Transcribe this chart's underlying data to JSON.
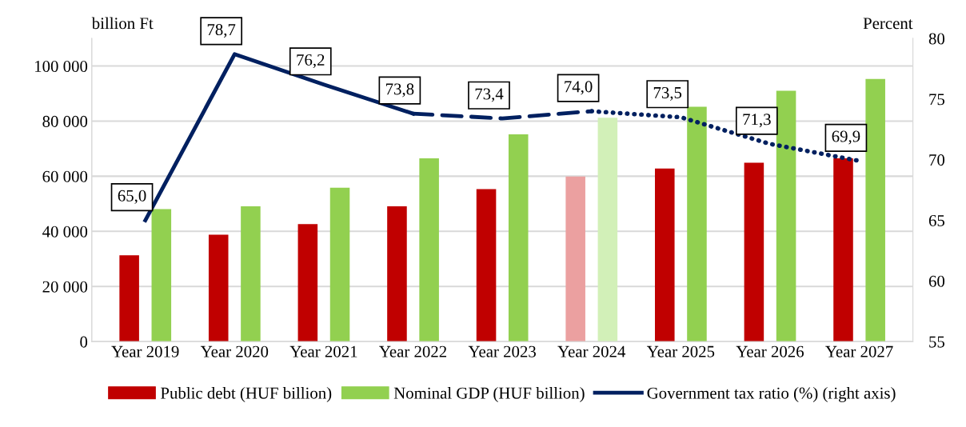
{
  "chart_data": {
    "type": "bar",
    "ylabel": "billion Ft",
    "y2label": "Percent",
    "categories": [
      "Year 2019",
      "Year 2020",
      "Year 2021",
      "Year 2022",
      "Year 2023",
      "Year 2024",
      "Year 2025",
      "Year 2026",
      "Year 2027"
    ],
    "series": [
      {
        "name": "Public debt (HUF billion)",
        "color": "#c00000",
        "colors": [
          "#c00000",
          "#c00000",
          "#c00000",
          "#c00000",
          "#c00000",
          "#eba0a0",
          "#c00000",
          "#c00000",
          "#c00000"
        ],
        "values": [
          31300,
          38800,
          42600,
          49100,
          55300,
          59900,
          62800,
          64900,
          66500
        ]
      },
      {
        "name": "Nominal GDP (HUF billion)",
        "color": "#92d050",
        "colors": [
          "#92d050",
          "#92d050",
          "#92d050",
          "#92d050",
          "#92d050",
          "#d2f0b8",
          "#92d050",
          "#92d050",
          "#92d050"
        ],
        "values": [
          48100,
          49100,
          55800,
          66500,
          75200,
          81200,
          85200,
          91000,
          95300
        ]
      },
      {
        "name": "Government tax ratio (%) (right axis)",
        "type": "line",
        "axis": "y2",
        "color": "#002060",
        "line_style": "solid",
        "values": [
          65.0,
          78.7,
          76.2,
          73.8,
          null,
          null,
          null,
          null,
          null
        ],
        "value_labels": [
          "65,0",
          "78,7",
          "76,2",
          "73,8",
          null,
          null,
          null,
          null,
          null
        ]
      },
      {
        "type": "line",
        "axis": "y2",
        "color": "#002060",
        "line_style": "dashed",
        "values": [
          null,
          null,
          null,
          73.8,
          73.4,
          74.0,
          null,
          null,
          null
        ],
        "value_labels": [
          null,
          null,
          null,
          null,
          "73,4",
          "74,0",
          null,
          null,
          null
        ]
      },
      {
        "type": "line",
        "axis": "y2",
        "color": "#002060",
        "line_style": "dotted",
        "values": [
          null,
          null,
          null,
          null,
          null,
          74.0,
          73.5,
          71.3,
          69.9
        ],
        "value_labels": [
          null,
          null,
          null,
          null,
          null,
          null,
          "73,5",
          "71,3",
          "69,9"
        ]
      }
    ],
    "ylim": [
      0,
      110000
    ],
    "yticks": [
      {
        "value": 0,
        "label": "0"
      },
      {
        "value": 20000,
        "label": "20 000"
      },
      {
        "value": 40000,
        "label": "40 000"
      },
      {
        "value": 60000,
        "label": "60 000"
      },
      {
        "value": 80000,
        "label": "80 000"
      },
      {
        "value": 100000,
        "label": "100 000"
      }
    ],
    "y2lim": [
      55,
      80
    ],
    "y2ticks": [
      55,
      60,
      65,
      70,
      75,
      80
    ],
    "grid": "y",
    "legend": "bottom"
  }
}
